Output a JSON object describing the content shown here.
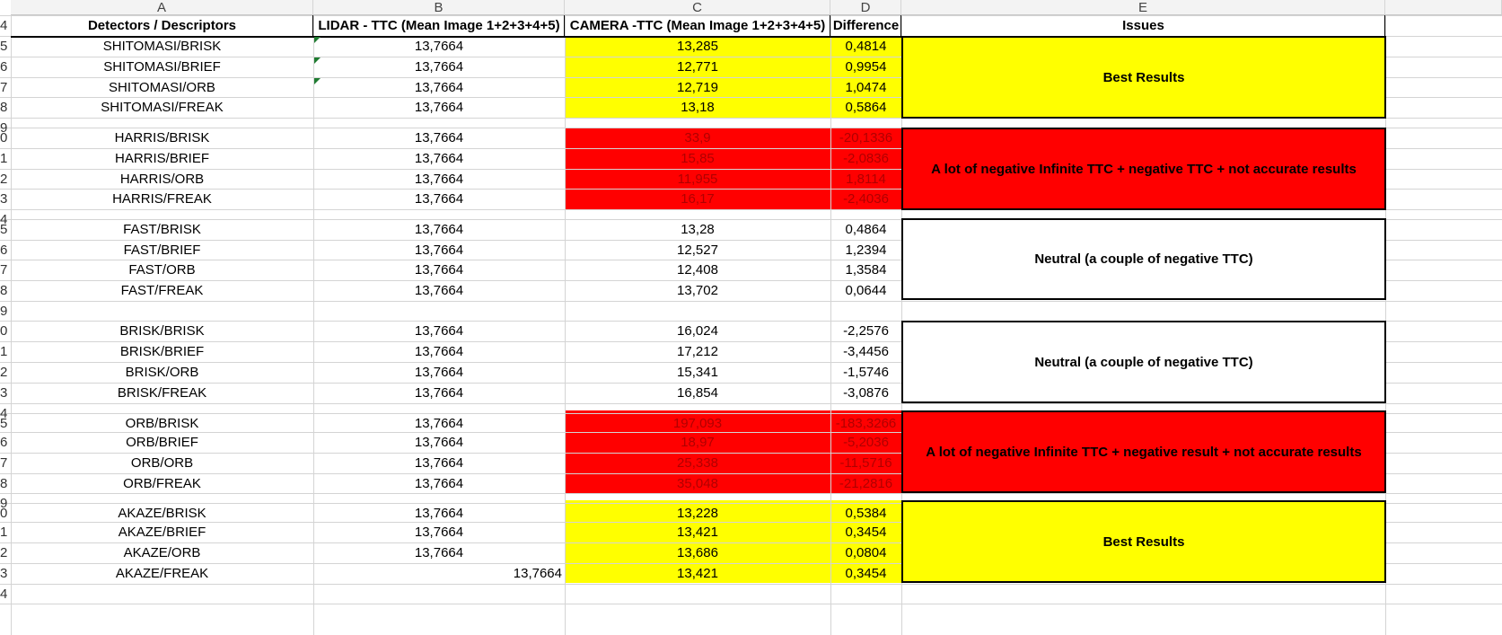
{
  "column_letters": [
    "A",
    "B",
    "C",
    "D",
    "E"
  ],
  "headers": {
    "a": "Detectors / Descriptors",
    "b": "LIDAR - TTC  (Mean Image 1+2+3+4+5)",
    "c": "CAMERA -TTC (Mean Image 1+2+3+4+5)",
    "d": "Difference",
    "e": "Issues"
  },
  "row_numbers": [
    "4",
    "5",
    "6",
    "7",
    "8",
    "9",
    "0",
    "1",
    "2",
    "3",
    "4",
    "5",
    "6",
    "7",
    "8",
    "9",
    "0",
    "1",
    "2",
    "3",
    "4",
    "5",
    "6",
    "7",
    "8",
    "9",
    "0",
    "1",
    "2",
    "3",
    "4"
  ],
  "rows": [
    {
      "name": "SHITOMASI/BRISK",
      "lidar": "13,7664",
      "camera": "13,285",
      "diff": "0,4814"
    },
    {
      "name": "SHITOMASI/BRIEF",
      "lidar": "13,7664",
      "camera": "12,771",
      "diff": "0,9954"
    },
    {
      "name": "SHITOMASI/ORB",
      "lidar": "13,7664",
      "camera": "12,719",
      "diff": "1,0474"
    },
    {
      "name": "SHITOMASI/FREAK",
      "lidar": "13,7664",
      "camera": "13,18",
      "diff": "0,5864"
    },
    {
      "name": "HARRIS/BRISK",
      "lidar": "13,7664",
      "camera": "33,9",
      "diff": "-20,1336"
    },
    {
      "name": "HARRIS/BRIEF",
      "lidar": "13,7664",
      "camera": "15,85",
      "diff": "-2,0836"
    },
    {
      "name": "HARRIS/ORB",
      "lidar": "13,7664",
      "camera": "11,955",
      "diff": "1,8114"
    },
    {
      "name": "HARRIS/FREAK",
      "lidar": "13,7664",
      "camera": "16,17",
      "diff": "-2,4036"
    },
    {
      "name": "FAST/BRISK",
      "lidar": "13,7664",
      "camera": "13,28",
      "diff": "0,4864"
    },
    {
      "name": "FAST/BRIEF",
      "lidar": "13,7664",
      "camera": "12,527",
      "diff": "1,2394"
    },
    {
      "name": "FAST/ORB",
      "lidar": "13,7664",
      "camera": "12,408",
      "diff": "1,3584"
    },
    {
      "name": "FAST/FREAK",
      "lidar": "13,7664",
      "camera": "13,702",
      "diff": "0,0644"
    },
    {
      "name": "BRISK/BRISK",
      "lidar": "13,7664",
      "camera": "16,024",
      "diff": "-2,2576"
    },
    {
      "name": "BRISK/BRIEF",
      "lidar": "13,7664",
      "camera": "17,212",
      "diff": "-3,4456"
    },
    {
      "name": "BRISK/ORB",
      "lidar": "13,7664",
      "camera": "15,341",
      "diff": "-1,5746"
    },
    {
      "name": "BRISK/FREAK",
      "lidar": "13,7664",
      "camera": "16,854",
      "diff": "-3,0876"
    },
    {
      "name": "ORB/BRISK",
      "lidar": "13,7664",
      "camera": "197,093",
      "diff": "-183,3266"
    },
    {
      "name": "ORB/BRIEF",
      "lidar": "13,7664",
      "camera": "18,97",
      "diff": "-5,2036"
    },
    {
      "name": "ORB/ORB",
      "lidar": "13,7664",
      "camera": "25,338",
      "diff": "-11,5716"
    },
    {
      "name": "ORB/FREAK",
      "lidar": "13,7664",
      "camera": "35,048",
      "diff": "-21,2816"
    },
    {
      "name": "AKAZE/BRISK",
      "lidar": "13,7664",
      "camera": "13,228",
      "diff": "0,5384"
    },
    {
      "name": "AKAZE/BRIEF",
      "lidar": "13,7664",
      "camera": "13,421",
      "diff": "0,3454"
    },
    {
      "name": "AKAZE/ORB",
      "lidar": "13,7664",
      "camera": "13,686",
      "diff": "0,0804"
    },
    {
      "name": "AKAZE/FREAK",
      "lidar": "13,7664",
      "camera": "13,421",
      "diff": "0,3454"
    }
  ],
  "issues": [
    "Best Results",
    "A lot of negative Infinite TTC + negative TTC  + not accurate results",
    "Neutral  (a couple of negative TTC)",
    "Neutral (a couple of negative TTC)",
    "A lot of negative Infinite TTC + negative result + not accurate results",
    "Best Results"
  ],
  "colors": {
    "yellow": "#ffff00",
    "red": "#ff0000",
    "gridline": "#d4d4d4",
    "header_bg": "#f3f3f3"
  }
}
